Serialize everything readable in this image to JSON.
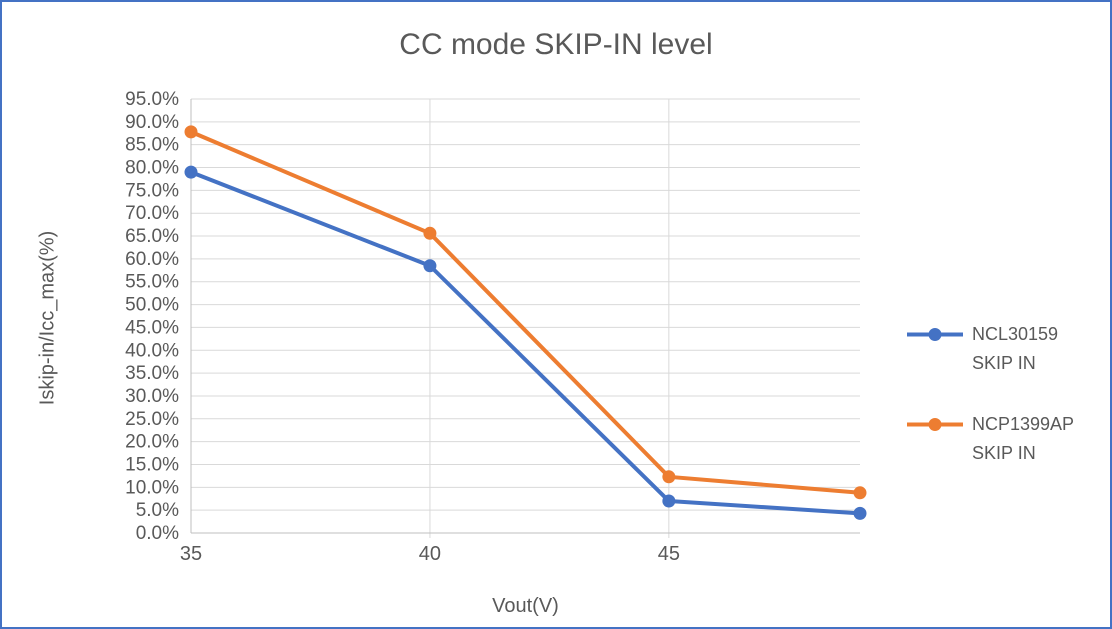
{
  "chart_data": {
    "type": "line",
    "title": "CC mode SKIP-IN level",
    "xlabel": "Vout(V)",
    "ylabel": "Iskip-in/Icc_max(%)",
    "x": [
      35,
      40,
      45,
      49
    ],
    "series": [
      {
        "name": "NCL30159 SKIP IN",
        "legend_lines": [
          "NCL30159",
          "SKIP IN"
        ],
        "color": "#4472C4",
        "values": [
          79.0,
          58.5,
          7.0,
          4.3
        ]
      },
      {
        "name": "NCP1399AP SKIP IN",
        "legend_lines": [
          "NCP1399AP",
          "SKIP IN"
        ],
        "color": "#ED7D31",
        "values": [
          87.8,
          65.6,
          12.3,
          8.8
        ]
      }
    ],
    "x_axis": {
      "min": 35,
      "max": 49,
      "ticks": [
        35,
        40,
        45
      ],
      "tick_labels": [
        "35",
        "40",
        "45"
      ]
    },
    "y_axis": {
      "min": 0,
      "max": 95,
      "step": 5,
      "tick_labels_top_to_bottom": [
        "95.0%",
        "90.0%",
        "85.0%",
        "80.0%",
        "75.0%",
        "70.0%",
        "65.0%",
        "60.0%",
        "55.0%",
        "50.0%",
        "45.0%",
        "40.0%",
        "35.0%",
        "30.0%",
        "25.0%",
        "20.0%",
        "15.0%",
        "10.0%",
        "5.0%",
        "0.0%"
      ]
    },
    "grid": true,
    "marker": "circle",
    "legend_position": "right",
    "colors": {
      "text": "#595959",
      "gridline": "#D9D9D9",
      "axis_line": "#BFBFBF",
      "border": "#4472C4",
      "background": "#FFFFFF"
    }
  }
}
